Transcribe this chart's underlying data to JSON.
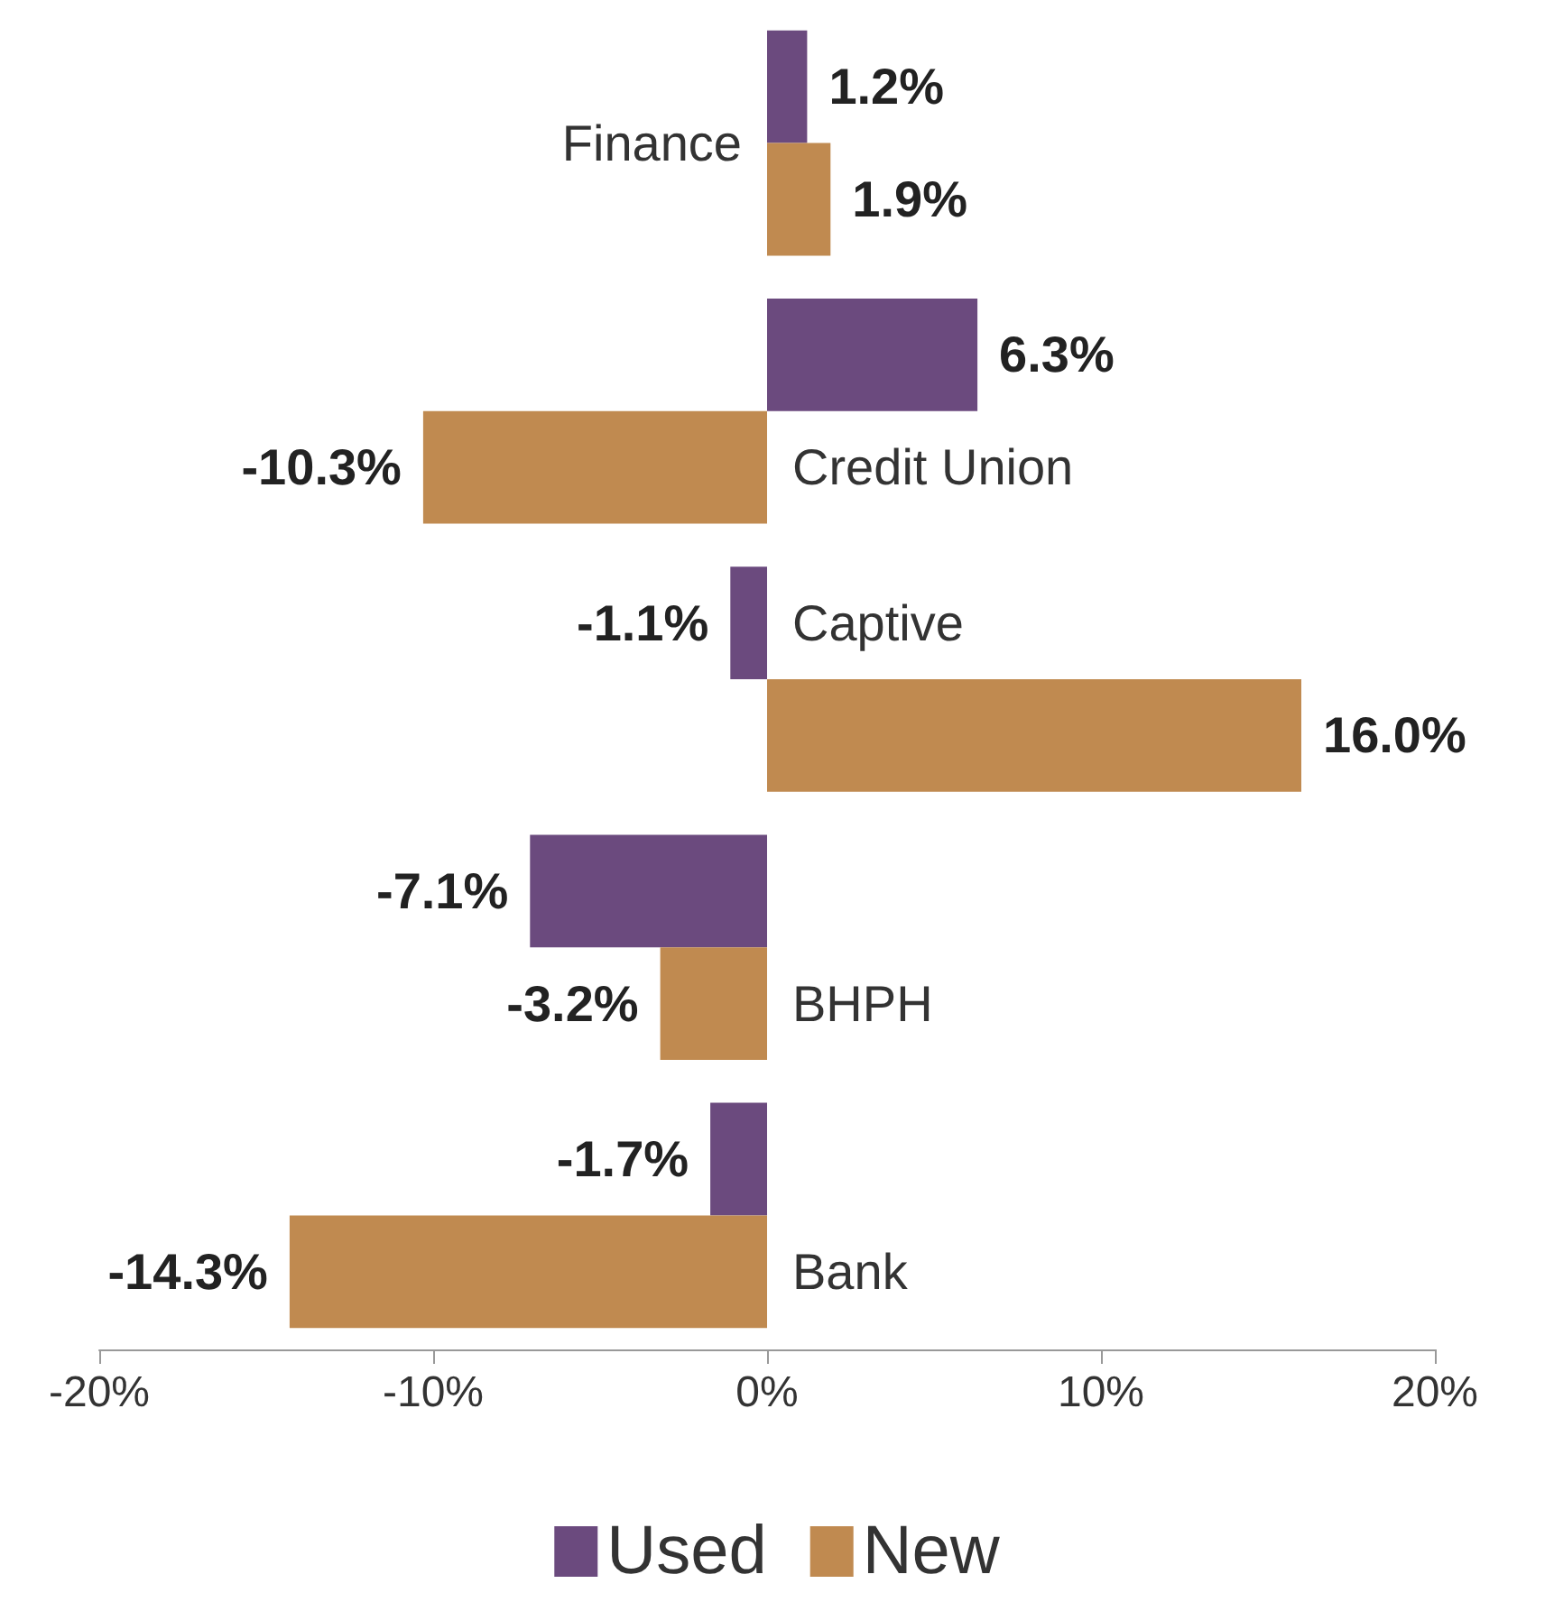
{
  "chart_data": {
    "type": "bar",
    "orientation": "horizontal",
    "categories": [
      "Finance",
      "Credit Union",
      "Captive",
      "BHPH",
      "Bank"
    ],
    "series": [
      {
        "name": "Used",
        "color": "#6b4a7e",
        "values": [
          1.2,
          6.3,
          -1.1,
          -7.1,
          -1.7
        ],
        "value_labels": [
          "1.2%",
          "6.3%",
          "-1.1%",
          "-7.1%",
          "-1.7%"
        ]
      },
      {
        "name": "New",
        "color": "#c08a50",
        "values": [
          1.9,
          -10.3,
          16.0,
          -3.2,
          -14.3
        ],
        "value_labels": [
          "1.9%",
          "-10.3%",
          "16.0%",
          "-3.2%",
          "-14.3%"
        ]
      }
    ],
    "xlim": [
      -20,
      20
    ],
    "xticks": [
      {
        "value": -20,
        "label": "-20%"
      },
      {
        "value": -10,
        "label": "-10%"
      },
      {
        "value": 0,
        "label": "0%"
      },
      {
        "value": 10,
        "label": "10%"
      },
      {
        "value": 20,
        "label": "20%"
      }
    ],
    "grid": false,
    "legend": "bottom"
  }
}
